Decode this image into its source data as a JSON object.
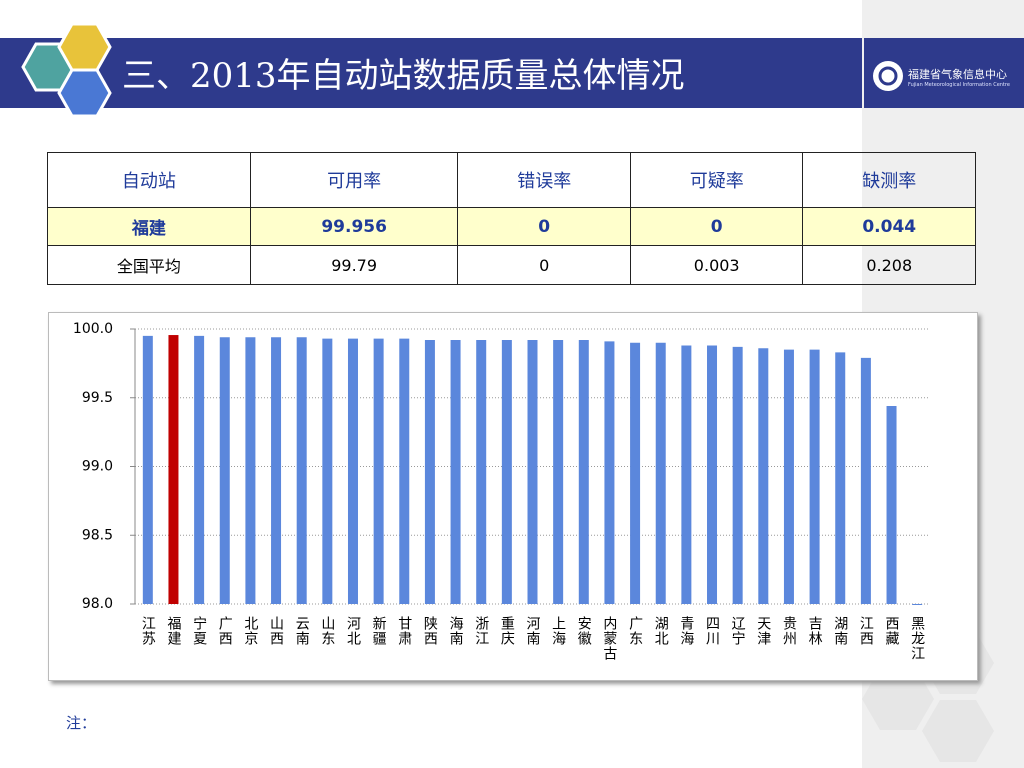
{
  "header": {
    "title": "三、2013年自动站数据质量总体情况",
    "logo_name": "福建省气象信息中心",
    "logo_subtitle": "Fujian Meteorological Information Centre"
  },
  "table": {
    "header": [
      "自动站",
      "可用率",
      "错误率",
      "可疑率",
      "缺测率"
    ],
    "rows": [
      [
        "福建",
        "99.956",
        "0",
        "0",
        "0.044"
      ],
      [
        "全国平均",
        "99.79",
        "0",
        "0.003",
        "0.208"
      ]
    ]
  },
  "chart_data": {
    "type": "bar",
    "categories": [
      "江苏",
      "福建",
      "宁夏",
      "广西",
      "北京",
      "山西",
      "云南",
      "山东",
      "河北",
      "新疆",
      "甘肃",
      "陕西",
      "海南",
      "浙江",
      "重庆",
      "河南",
      "上海",
      "安徽",
      "内蒙古",
      "广东",
      "湖北",
      "青海",
      "四川",
      "辽宁",
      "天津",
      "贵州",
      "吉林",
      "湖南",
      "江西",
      "西藏",
      "黑龙江"
    ],
    "values": [
      99.95,
      99.956,
      99.95,
      99.94,
      99.94,
      99.94,
      99.94,
      99.93,
      99.93,
      99.93,
      99.93,
      99.92,
      99.92,
      99.92,
      99.92,
      99.92,
      99.92,
      99.92,
      99.91,
      99.9,
      99.9,
      99.88,
      99.88,
      99.87,
      99.86,
      99.85,
      99.85,
      99.83,
      99.79,
      99.44,
      98.0
    ],
    "color": "#5b87dc",
    "highlight_category": "福建",
    "highlight_color": "#c00000",
    "ylim": [
      98,
      100
    ],
    "yticks": [
      {
        "value": 98,
        "label": "98.0"
      },
      {
        "value": 98.5,
        "label": "98.5"
      },
      {
        "value": 99,
        "label": "99.0"
      },
      {
        "value": 99.5,
        "label": "99.5"
      },
      {
        "value": 100,
        "label": "100.0"
      }
    ],
    "grid": true
  },
  "note": "注："
}
